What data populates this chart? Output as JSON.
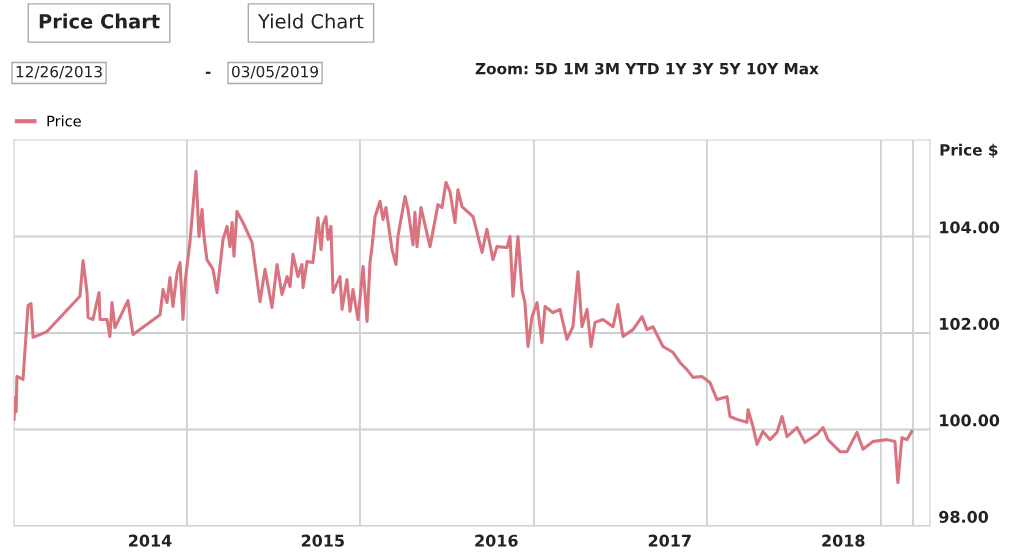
{
  "chart_data": {
    "type": "line",
    "annotations": [
      "Price Chart",
      "Yield Chart",
      "12/26/2013",
      "-",
      "03/05/2019",
      "Zoom: 5D 1M 3M YTD 1Y 3Y 5Y 10Y Max"
    ],
    "ylabel": "Price $",
    "legend": "top left",
    "grid": true,
    "xlim": [
      2013.22,
      2018.5
    ],
    "xticks": [
      {
        "value": 2014.004,
        "label": "2014"
      },
      {
        "value": 2015.0,
        "label": "2015"
      },
      {
        "value": 2016.0,
        "label": "2016"
      },
      {
        "value": 2017.0,
        "label": "2017"
      },
      {
        "value": 2018.0,
        "label": "2018"
      },
      {
        "value": 2014.217,
        "label": null
      },
      {
        "value": 2015.214,
        "label": null
      },
      {
        "value": 2016.217,
        "label": null
      },
      {
        "value": 2017.214,
        "label": null
      },
      {
        "value": 2018.217,
        "label": null
      },
      {
        "value": 2018.402,
        "label": null
      }
    ],
    "ylim": [
      98,
      106
    ],
    "yticks": [
      {
        "value": 98,
        "label": "98.00"
      },
      {
        "value": 100,
        "label": "100.00"
      },
      {
        "value": 102,
        "label": "102.00"
      },
      {
        "value": 104,
        "label": "104.00"
      }
    ],
    "series": [
      {
        "name": "Price",
        "color": "#d9737f",
        "x": [
          2013.22,
          2013.226,
          2013.232,
          2013.237,
          2013.272,
          2013.301,
          2013.318,
          2013.33,
          2013.41,
          2013.6,
          2013.618,
          2013.641,
          2013.647,
          2013.675,
          2013.71,
          2013.716,
          2013.756,
          2013.773,
          2013.785,
          2013.802,
          2013.877,
          2013.906,
          2014.062,
          2014.079,
          2014.102,
          2014.119,
          2014.136,
          2014.16,
          2014.177,
          2014.194,
          2014.206,
          2014.234,
          2014.269,
          2014.286,
          2014.304,
          2014.315,
          2014.332,
          2014.367,
          2014.39,
          2014.425,
          2014.448,
          2014.465,
          2014.477,
          2014.488,
          2014.505,
          2014.54,
          2014.592,
          2014.609,
          2014.638,
          2014.667,
          2014.707,
          2014.736,
          2014.765,
          2014.794,
          2014.811,
          2014.828,
          2014.857,
          2014.88,
          2014.886,
          2014.909,
          2014.943,
          2014.972,
          2014.99,
          2015.001,
          2015.018,
          2015.03,
          2015.047,
          2015.059,
          2015.099,
          2015.111,
          2015.139,
          2015.157,
          2015.174,
          2015.203,
          2015.232,
          2015.255,
          2015.272,
          2015.284,
          2015.301,
          2015.33,
          2015.347,
          2015.364,
          2015.399,
          2015.422,
          2015.433,
          2015.474,
          2015.491,
          2015.52,
          2015.531,
          2015.543,
          2015.566,
          2015.618,
          2015.664,
          2015.687,
          2015.71,
          2015.733,
          2015.762,
          2015.779,
          2015.802,
          2015.866,
          2015.918,
          2015.946,
          2015.981,
          2016.004,
          2016.062,
          2016.079,
          2016.096,
          2016.125,
          2016.148,
          2016.165,
          2016.183,
          2016.206,
          2016.235,
          2016.263,
          2016.281,
          2016.327,
          2016.367,
          2016.407,
          2016.442,
          2016.471,
          2016.494,
          2016.523,
          2016.546,
          2016.569,
          2016.615,
          2016.673,
          2016.701,
          2016.73,
          2016.788,
          2016.84,
          2016.869,
          2016.903,
          2016.961,
          2017.018,
          2017.059,
          2017.099,
          2017.134,
          2017.186,
          2017.232,
          2017.272,
          2017.33,
          2017.347,
          2017.387,
          2017.445,
          2017.451,
          2017.48,
          2017.503,
          2017.537,
          2017.578,
          2017.618,
          2017.647,
          2017.676,
          2017.733,
          2017.779,
          2017.849,
          2017.883,
          2017.912,
          2017.981,
          2018.021,
          2018.079,
          2018.114,
          2018.171,
          2018.252,
          2018.298,
          2018.315,
          2018.338,
          2018.367,
          2018.395
        ],
        "values": [
          100.21,
          100.66,
          100.37,
          101.1,
          101.04,
          102.57,
          102.61,
          101.91,
          102.03,
          102.76,
          103.5,
          102.84,
          102.32,
          102.28,
          102.84,
          102.28,
          102.28,
          101.93,
          102.63,
          102.11,
          102.67,
          101.97,
          102.38,
          102.9,
          102.63,
          103.15,
          102.55,
          103.25,
          103.46,
          102.28,
          103.05,
          103.88,
          105.35,
          104.0,
          104.56,
          104.0,
          103.52,
          103.32,
          102.84,
          103.94,
          104.21,
          103.79,
          104.29,
          103.59,
          104.52,
          104.29,
          103.88,
          103.42,
          102.65,
          103.32,
          102.53,
          103.42,
          102.8,
          103.17,
          102.96,
          103.63,
          103.17,
          103.42,
          102.94,
          103.48,
          103.46,
          104.39,
          103.73,
          104.25,
          104.41,
          103.94,
          104.21,
          102.84,
          103.17,
          102.49,
          103.11,
          102.45,
          102.9,
          102.28,
          103.38,
          102.24,
          103.46,
          103.79,
          104.41,
          104.73,
          104.35,
          104.6,
          103.73,
          103.42,
          104.0,
          104.83,
          104.56,
          103.83,
          104.5,
          103.79,
          104.6,
          103.79,
          104.66,
          104.6,
          105.12,
          104.93,
          104.29,
          104.97,
          104.62,
          104.41,
          103.67,
          104.15,
          103.52,
          103.79,
          103.77,
          104.0,
          102.76,
          104.0,
          102.9,
          102.63,
          101.72,
          102.34,
          102.63,
          101.8,
          102.55,
          102.42,
          102.49,
          101.87,
          102.13,
          103.27,
          102.13,
          102.49,
          101.72,
          102.22,
          102.28,
          102.13,
          102.59,
          101.93,
          102.07,
          102.34,
          102.07,
          102.13,
          101.72,
          101.6,
          101.39,
          101.24,
          101.08,
          101.1,
          100.97,
          100.62,
          100.68,
          100.27,
          100.21,
          100.15,
          100.41,
          100.06,
          99.69,
          99.96,
          99.79,
          99.94,
          100.27,
          99.85,
          100.04,
          99.73,
          99.9,
          100.04,
          99.79,
          99.54,
          99.54,
          99.94,
          99.59,
          99.75,
          99.79,
          99.75,
          98.9,
          99.83,
          99.79,
          99.96
        ]
      }
    ]
  }
}
